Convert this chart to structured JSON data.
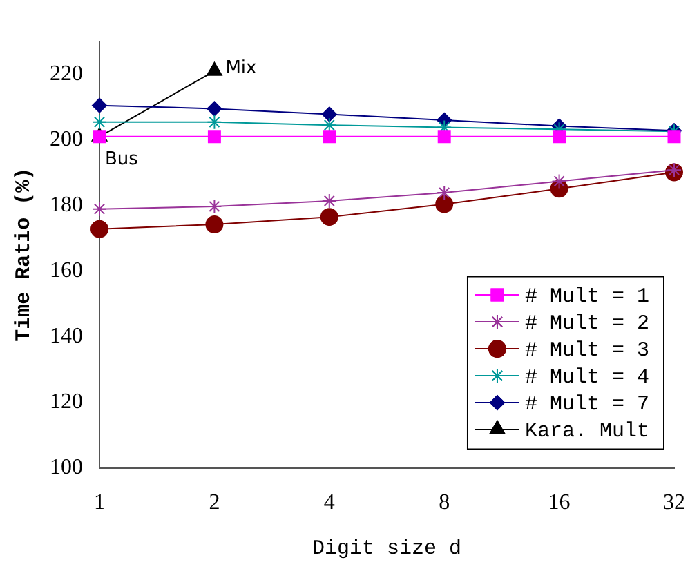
{
  "chart_data": {
    "type": "line",
    "xlabel": "Digit size d",
    "ylabel": "Time Ratio (%)",
    "categories": [
      "1",
      "2",
      "4",
      "8",
      "16",
      "32"
    ],
    "ylim": [
      100,
      230
    ],
    "yticks": [
      100,
      120,
      140,
      160,
      180,
      200,
      220
    ],
    "grid": false,
    "legend": "bottom right",
    "series": [
      {
        "name": "# Mult = 1",
        "color": "#ff00ff",
        "marker": "square",
        "values": [
          201,
          201,
          201,
          201,
          201,
          201
        ]
      },
      {
        "name": "# Mult = 2",
        "color": "#993399",
        "marker": "cross",
        "values": [
          178.9,
          179.7,
          181.4,
          183.9,
          187.4,
          190.8
        ]
      },
      {
        "name": "# Mult = 3",
        "color": "#800000",
        "marker": "circle",
        "values": [
          172.8,
          174.2,
          176.5,
          180.4,
          185.1,
          190.1
        ]
      },
      {
        "name": "# Mult = 4",
        "color": "#009999",
        "marker": "cross",
        "values": [
          205.4,
          205.4,
          204.5,
          203.8,
          203.2,
          202.6
        ]
      },
      {
        "name": "# Mult = 7",
        "color": "#000080",
        "marker": "diamond",
        "values": [
          210.5,
          209.5,
          207.8,
          206,
          204.2,
          202.8
        ]
      },
      {
        "name": "Kara. Mult",
        "color": "#000000",
        "marker": "triangle",
        "values": [
          201,
          221,
          null,
          null,
          null,
          null
        ]
      }
    ],
    "annotations": [
      {
        "text": "Bus",
        "x": "1",
        "y": 201
      },
      {
        "text": "Mix",
        "x": "2",
        "y": 221
      }
    ]
  }
}
